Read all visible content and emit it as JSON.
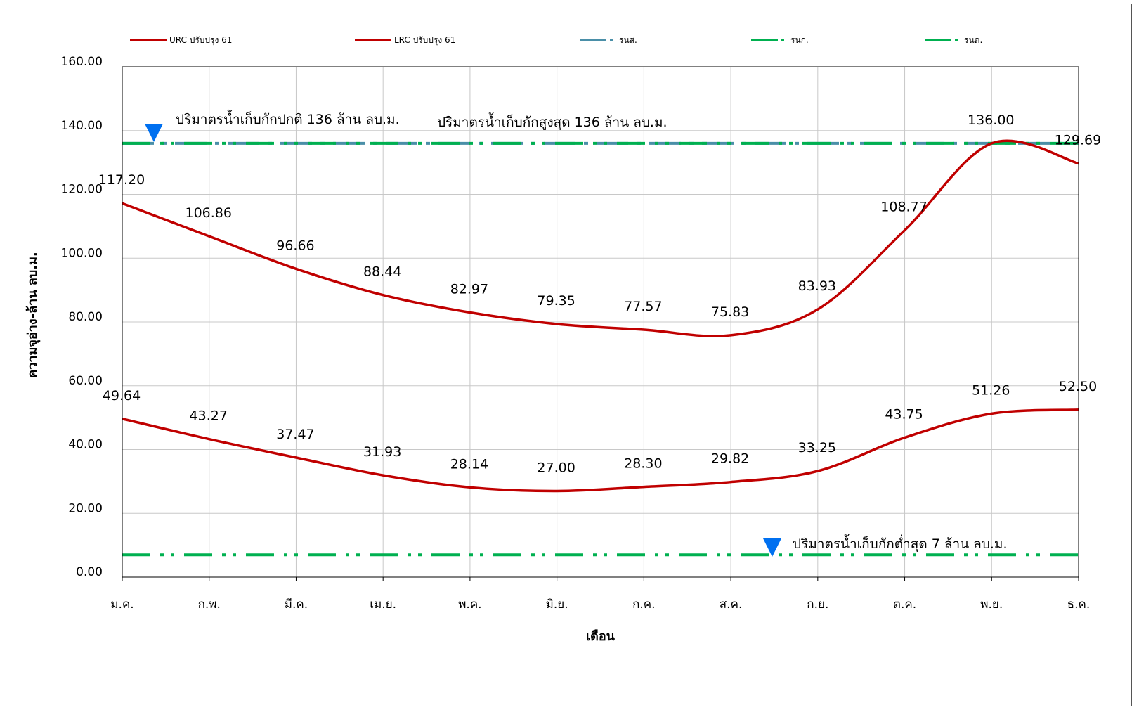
{
  "chart_data": {
    "type": "line",
    "xlabel": "เดือน",
    "ylabel": "ความจุอ่าง-ล้าน ลบ.ม.",
    "ylim": [
      0,
      160
    ],
    "yticks": [
      "0.00",
      "20.00",
      "40.00",
      "60.00",
      "80.00",
      "100.00",
      "120.00",
      "140.00",
      "160.00"
    ],
    "categories": [
      "ม.ค.",
      "ก.พ.",
      "มี.ค.",
      "เม.ย.",
      "พ.ค.",
      "มิ.ย.",
      "ก.ค.",
      "ส.ค.",
      "ก.ย.",
      "ต.ค.",
      "พ.ย.",
      "ธ.ค."
    ],
    "grid": true,
    "legend_position": "top",
    "series": [
      {
        "name": "URC ปรับปรุง 61",
        "color": "#c00000",
        "style": "solid",
        "values": [
          117.2,
          106.86,
          96.66,
          88.44,
          82.97,
          79.35,
          77.57,
          75.83,
          83.93,
          108.77,
          136.0,
          129.69
        ]
      },
      {
        "name": "LRC ปรับปรุง 61",
        "color": "#c00000",
        "style": "solid",
        "values": [
          49.64,
          43.27,
          37.47,
          31.93,
          28.14,
          27.0,
          28.3,
          29.82,
          33.25,
          43.75,
          51.26,
          52.5
        ]
      },
      {
        "name": "รนส.",
        "color": "#4a8fa8",
        "style": "dash-dot",
        "constant": 136
      },
      {
        "name": "รนก.",
        "color": "#00b050",
        "style": "dash-dot",
        "constant": 136
      },
      {
        "name": "รนต.",
        "color": "#00b050",
        "style": "dash-dot",
        "constant": 7
      }
    ],
    "annotations": [
      {
        "text": "ปริมาตรน้ำเก็บกักปกติ  136 ล้าน ลบ.ม.",
        "marker": "triangle-down",
        "marker_color": "#0070f0"
      },
      {
        "text": "ปริมาตรน้ำเก็บกักสูงสุด   136 ล้าน ลบ.ม."
      },
      {
        "text": "ปริมาตรน้ำเก็บกักต่ำสุด 7 ล้าน ลบ.ม.",
        "marker": "triangle-down",
        "marker_color": "#0070f0"
      }
    ]
  }
}
